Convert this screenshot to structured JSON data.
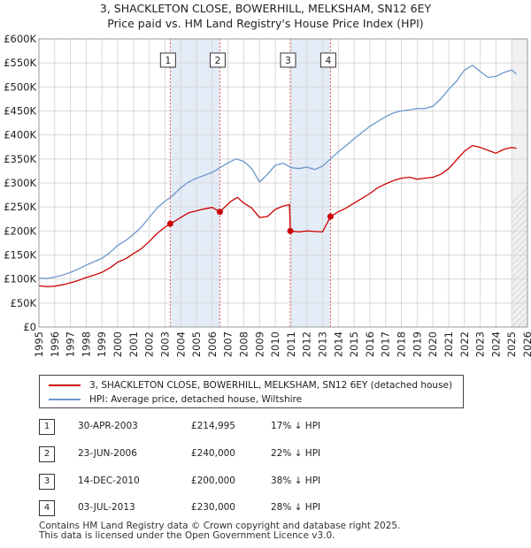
{
  "title_line1": "3, SHACKLETON CLOSE, BOWERHILL, MELKSHAM, SN12 6EY",
  "title_line2": "Price paid vs. HM Land Registry's House Price Index (HPI)",
  "chart_data": {
    "type": "line",
    "xlim": [
      1995,
      2026
    ],
    "ylim": [
      0,
      600000
    ],
    "y_ticks": [
      0,
      50000,
      100000,
      150000,
      200000,
      250000,
      300000,
      350000,
      400000,
      450000,
      500000,
      550000,
      600000
    ],
    "y_tick_labels": [
      "£0",
      "£50K",
      "£100K",
      "£150K",
      "£200K",
      "£250K",
      "£300K",
      "£350K",
      "£400K",
      "£450K",
      "£500K",
      "£550K",
      "£600K"
    ],
    "x_ticks": [
      1995,
      1996,
      1997,
      1998,
      1999,
      2000,
      2001,
      2002,
      2003,
      2004,
      2005,
      2006,
      2007,
      2008,
      2009,
      2010,
      2011,
      2012,
      2013,
      2014,
      2015,
      2016,
      2017,
      2018,
      2019,
      2020,
      2021,
      2022,
      2023,
      2024,
      2025,
      2026
    ],
    "grid": true,
    "series": [
      {
        "name": "3, SHACKLETON CLOSE, BOWERHILL, MELKSHAM, SN12 6EY (detached house)",
        "color": "#cc0000",
        "x": [
          1995.0,
          1995.5,
          1996.0,
          1996.5,
          1997.0,
          1997.5,
          1998.0,
          1998.5,
          1999.0,
          1999.5,
          2000.0,
          2000.5,
          2001.0,
          2001.5,
          2002.0,
          2002.5,
          2003.0,
          2003.33,
          2003.6,
          2004.0,
          2004.5,
          2005.0,
          2005.5,
          2006.0,
          2006.48,
          2006.8,
          2007.2,
          2007.6,
          2008.0,
          2008.5,
          2009.0,
          2009.5,
          2010.0,
          2010.5,
          2010.9,
          2010.95,
          2011.5,
          2012.0,
          2012.5,
          2013.0,
          2013.5,
          2014.0,
          2014.5,
          2015.0,
          2015.5,
          2016.0,
          2016.5,
          2017.0,
          2017.5,
          2018.0,
          2018.5,
          2019.0,
          2019.5,
          2020.0,
          2020.5,
          2021.0,
          2021.5,
          2022.0,
          2022.5,
          2023.0,
          2023.5,
          2024.0,
          2024.5,
          2025.0,
          2025.3
        ],
        "values": [
          86000,
          84000,
          85000,
          88000,
          92000,
          97000,
          103000,
          108000,
          114000,
          123000,
          135000,
          142000,
          153000,
          163000,
          178000,
          195000,
          208000,
          214995,
          220000,
          228000,
          238000,
          242000,
          246000,
          249000,
          240000,
          250000,
          262000,
          270000,
          258000,
          248000,
          228000,
          230000,
          245000,
          252000,
          255000,
          200000,
          198000,
          200000,
          199000,
          198000,
          230000,
          240000,
          248000,
          258000,
          268000,
          278000,
          290000,
          298000,
          305000,
          310000,
          312000,
          308000,
          310000,
          312000,
          318000,
          330000,
          348000,
          366000,
          378000,
          374000,
          368000,
          362000,
          370000,
          374000,
          372000
        ]
      },
      {
        "name": "HPI: Average price, detached house, Wiltshire",
        "color": "#6b96cc",
        "x": [
          1995.0,
          1995.5,
          1996.0,
          1996.5,
          1997.0,
          1997.5,
          1998.0,
          1998.5,
          1999.0,
          1999.5,
          2000.0,
          2000.5,
          2001.0,
          2001.5,
          2002.0,
          2002.5,
          2003.0,
          2003.5,
          2004.0,
          2004.5,
          2005.0,
          2005.5,
          2006.0,
          2006.5,
          2007.0,
          2007.5,
          2008.0,
          2008.5,
          2009.0,
          2009.5,
          2010.0,
          2010.5,
          2011.0,
          2011.5,
          2012.0,
          2012.5,
          2013.0,
          2013.5,
          2014.0,
          2014.5,
          2015.0,
          2015.5,
          2016.0,
          2016.5,
          2017.0,
          2017.5,
          2018.0,
          2018.5,
          2019.0,
          2019.5,
          2020.0,
          2020.5,
          2021.0,
          2021.5,
          2022.0,
          2022.5,
          2023.0,
          2023.5,
          2024.0,
          2024.5,
          2025.0,
          2025.3
        ],
        "values": [
          102000,
          101000,
          104000,
          108000,
          114000,
          121000,
          129000,
          136000,
          143000,
          155000,
          170000,
          180000,
          193000,
          208000,
          228000,
          248000,
          262000,
          274000,
          290000,
          302000,
          310000,
          316000,
          322000,
          332000,
          342000,
          350000,
          345000,
          330000,
          302000,
          318000,
          337000,
          341000,
          332000,
          330000,
          333000,
          328000,
          335000,
          350000,
          365000,
          378000,
          392000,
          405000,
          418000,
          428000,
          438000,
          446000,
          450000,
          452000,
          455000,
          455000,
          460000,
          475000,
          495000,
          512000,
          535000,
          545000,
          532000,
          520000,
          522000,
          530000,
          535000,
          527000
        ]
      }
    ],
    "sales": [
      {
        "label": "1",
        "date": "30-APR-2003",
        "x": 2003.33,
        "price": 214995,
        "price_label": "£214,995",
        "hpi": "17% ↓ HPI"
      },
      {
        "label": "2",
        "date": "23-JUN-2006",
        "x": 2006.48,
        "price": 240000,
        "price_label": "£240,000",
        "hpi": "22% ↓ HPI"
      },
      {
        "label": "3",
        "date": "14-DEC-2010",
        "x": 2010.95,
        "price": 200000,
        "price_label": "£200,000",
        "hpi": "38% ↓ HPI"
      },
      {
        "label": "4",
        "date": "03-JUL-2013",
        "x": 2013.5,
        "price": 230000,
        "price_label": "£230,000",
        "hpi": "28% ↓ HPI"
      }
    ],
    "shaded_periods": [
      [
        2003.33,
        2006.48
      ],
      [
        2010.95,
        2013.5
      ]
    ],
    "projection_start": 2025.0,
    "colors": {
      "shade": "#e4ecf8",
      "grid": "#d8d8d8",
      "marker": "#cc0000",
      "vline": "#e06060"
    }
  },
  "legend": {
    "red_label": "3, SHACKLETON CLOSE, BOWERHILL, MELKSHAM, SN12 6EY (detached house)",
    "blue_label": "HPI: Average price, detached house, Wiltshire"
  },
  "footer": {
    "line1": "Contains HM Land Registry data © Crown copyright and database right 2025.",
    "line2": "This data is licensed under the Open Government Licence v3.0."
  }
}
